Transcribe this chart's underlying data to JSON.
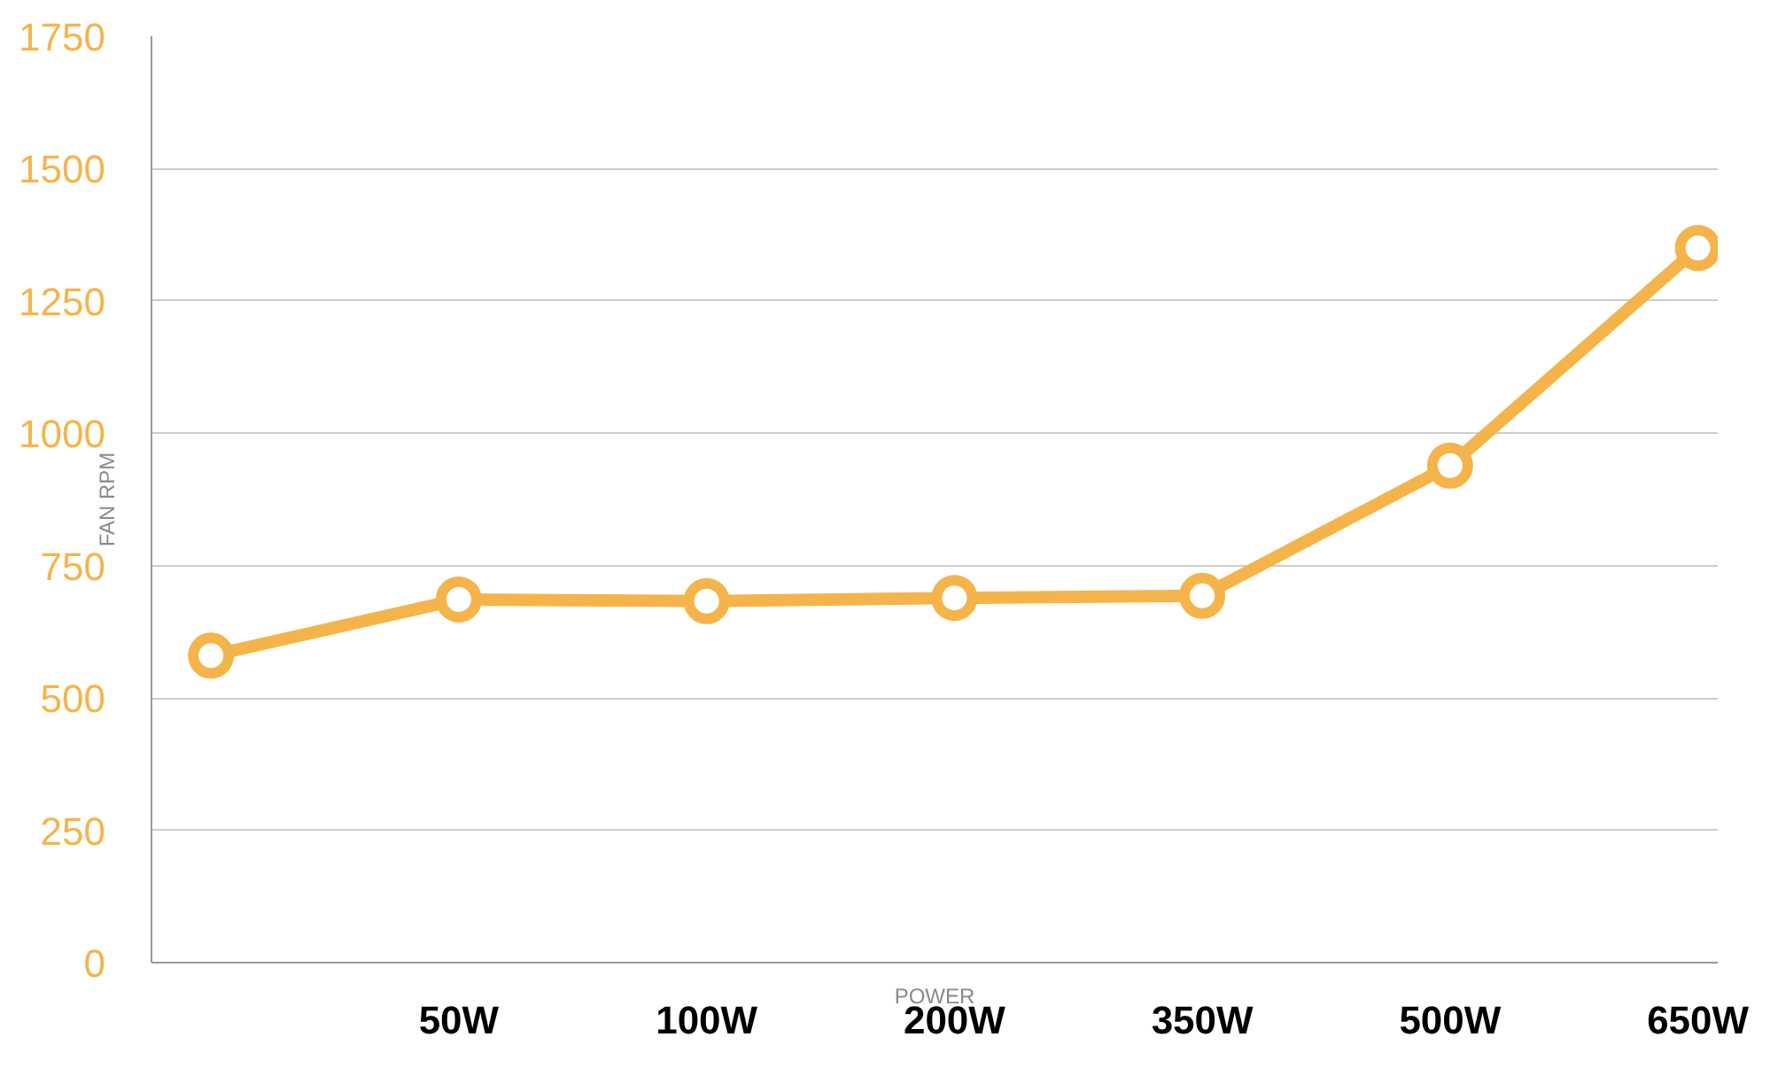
{
  "chart_data": {
    "type": "line",
    "xlabel": "POWER",
    "ylabel": "FAN RPM",
    "categories": [
      null,
      "50W",
      "100W",
      "200W",
      "350W",
      "500W",
      "650W"
    ],
    "series": [
      {
        "color": "#f5b44a",
        "values": [
          580,
          686,
          683,
          689,
          693,
          939,
          1350
        ]
      }
    ],
    "ylim": [
      0,
      1750
    ],
    "yticks": [
      0,
      250,
      500,
      750,
      1000,
      1250,
      1500,
      1750
    ],
    "grid": "y",
    "marker": "circle",
    "line_style": "solid"
  }
}
